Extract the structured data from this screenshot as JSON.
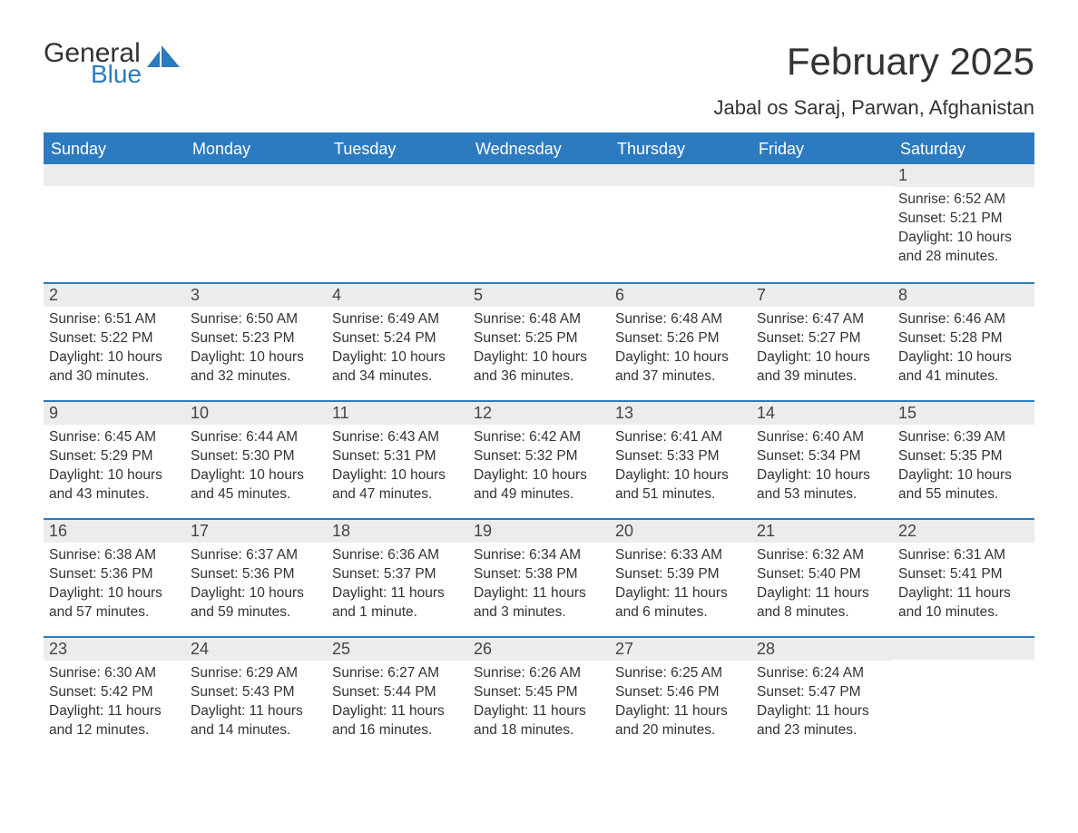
{
  "colors": {
    "brand_blue": "#2c7bc0",
    "header_bg": "#2c7bc0",
    "header_text": "#ffffff",
    "daynum_bg": "#ececec",
    "body_text": "#333333",
    "page_bg": "#ffffff",
    "row_divider": "#2c7bc0"
  },
  "logo": {
    "line1": "General",
    "line2": "Blue"
  },
  "title": "February 2025",
  "location": "Jabal os Saraj, Parwan, Afghanistan",
  "weekdays": [
    "Sunday",
    "Monday",
    "Tuesday",
    "Wednesday",
    "Thursday",
    "Friday",
    "Saturday"
  ],
  "weeks": [
    [
      {
        "empty": true
      },
      {
        "empty": true
      },
      {
        "empty": true
      },
      {
        "empty": true
      },
      {
        "empty": true
      },
      {
        "empty": true
      },
      {
        "num": "1",
        "sunrise": "Sunrise: 6:52 AM",
        "sunset": "Sunset: 5:21 PM",
        "daylight": "Daylight: 10 hours and 28 minutes."
      }
    ],
    [
      {
        "num": "2",
        "sunrise": "Sunrise: 6:51 AM",
        "sunset": "Sunset: 5:22 PM",
        "daylight": "Daylight: 10 hours and 30 minutes."
      },
      {
        "num": "3",
        "sunrise": "Sunrise: 6:50 AM",
        "sunset": "Sunset: 5:23 PM",
        "daylight": "Daylight: 10 hours and 32 minutes."
      },
      {
        "num": "4",
        "sunrise": "Sunrise: 6:49 AM",
        "sunset": "Sunset: 5:24 PM",
        "daylight": "Daylight: 10 hours and 34 minutes."
      },
      {
        "num": "5",
        "sunrise": "Sunrise: 6:48 AM",
        "sunset": "Sunset: 5:25 PM",
        "daylight": "Daylight: 10 hours and 36 minutes."
      },
      {
        "num": "6",
        "sunrise": "Sunrise: 6:48 AM",
        "sunset": "Sunset: 5:26 PM",
        "daylight": "Daylight: 10 hours and 37 minutes."
      },
      {
        "num": "7",
        "sunrise": "Sunrise: 6:47 AM",
        "sunset": "Sunset: 5:27 PM",
        "daylight": "Daylight: 10 hours and 39 minutes."
      },
      {
        "num": "8",
        "sunrise": "Sunrise: 6:46 AM",
        "sunset": "Sunset: 5:28 PM",
        "daylight": "Daylight: 10 hours and 41 minutes."
      }
    ],
    [
      {
        "num": "9",
        "sunrise": "Sunrise: 6:45 AM",
        "sunset": "Sunset: 5:29 PM",
        "daylight": "Daylight: 10 hours and 43 minutes."
      },
      {
        "num": "10",
        "sunrise": "Sunrise: 6:44 AM",
        "sunset": "Sunset: 5:30 PM",
        "daylight": "Daylight: 10 hours and 45 minutes."
      },
      {
        "num": "11",
        "sunrise": "Sunrise: 6:43 AM",
        "sunset": "Sunset: 5:31 PM",
        "daylight": "Daylight: 10 hours and 47 minutes."
      },
      {
        "num": "12",
        "sunrise": "Sunrise: 6:42 AM",
        "sunset": "Sunset: 5:32 PM",
        "daylight": "Daylight: 10 hours and 49 minutes."
      },
      {
        "num": "13",
        "sunrise": "Sunrise: 6:41 AM",
        "sunset": "Sunset: 5:33 PM",
        "daylight": "Daylight: 10 hours and 51 minutes."
      },
      {
        "num": "14",
        "sunrise": "Sunrise: 6:40 AM",
        "sunset": "Sunset: 5:34 PM",
        "daylight": "Daylight: 10 hours and 53 minutes."
      },
      {
        "num": "15",
        "sunrise": "Sunrise: 6:39 AM",
        "sunset": "Sunset: 5:35 PM",
        "daylight": "Daylight: 10 hours and 55 minutes."
      }
    ],
    [
      {
        "num": "16",
        "sunrise": "Sunrise: 6:38 AM",
        "sunset": "Sunset: 5:36 PM",
        "daylight": "Daylight: 10 hours and 57 minutes."
      },
      {
        "num": "17",
        "sunrise": "Sunrise: 6:37 AM",
        "sunset": "Sunset: 5:36 PM",
        "daylight": "Daylight: 10 hours and 59 minutes."
      },
      {
        "num": "18",
        "sunrise": "Sunrise: 6:36 AM",
        "sunset": "Sunset: 5:37 PM",
        "daylight": "Daylight: 11 hours and 1 minute."
      },
      {
        "num": "19",
        "sunrise": "Sunrise: 6:34 AM",
        "sunset": "Sunset: 5:38 PM",
        "daylight": "Daylight: 11 hours and 3 minutes."
      },
      {
        "num": "20",
        "sunrise": "Sunrise: 6:33 AM",
        "sunset": "Sunset: 5:39 PM",
        "daylight": "Daylight: 11 hours and 6 minutes."
      },
      {
        "num": "21",
        "sunrise": "Sunrise: 6:32 AM",
        "sunset": "Sunset: 5:40 PM",
        "daylight": "Daylight: 11 hours and 8 minutes."
      },
      {
        "num": "22",
        "sunrise": "Sunrise: 6:31 AM",
        "sunset": "Sunset: 5:41 PM",
        "daylight": "Daylight: 11 hours and 10 minutes."
      }
    ],
    [
      {
        "num": "23",
        "sunrise": "Sunrise: 6:30 AM",
        "sunset": "Sunset: 5:42 PM",
        "daylight": "Daylight: 11 hours and 12 minutes."
      },
      {
        "num": "24",
        "sunrise": "Sunrise: 6:29 AM",
        "sunset": "Sunset: 5:43 PM",
        "daylight": "Daylight: 11 hours and 14 minutes."
      },
      {
        "num": "25",
        "sunrise": "Sunrise: 6:27 AM",
        "sunset": "Sunset: 5:44 PM",
        "daylight": "Daylight: 11 hours and 16 minutes."
      },
      {
        "num": "26",
        "sunrise": "Sunrise: 6:26 AM",
        "sunset": "Sunset: 5:45 PM",
        "daylight": "Daylight: 11 hours and 18 minutes."
      },
      {
        "num": "27",
        "sunrise": "Sunrise: 6:25 AM",
        "sunset": "Sunset: 5:46 PM",
        "daylight": "Daylight: 11 hours and 20 minutes."
      },
      {
        "num": "28",
        "sunrise": "Sunrise: 6:24 AM",
        "sunset": "Sunset: 5:47 PM",
        "daylight": "Daylight: 11 hours and 23 minutes."
      },
      {
        "empty": true
      }
    ]
  ]
}
